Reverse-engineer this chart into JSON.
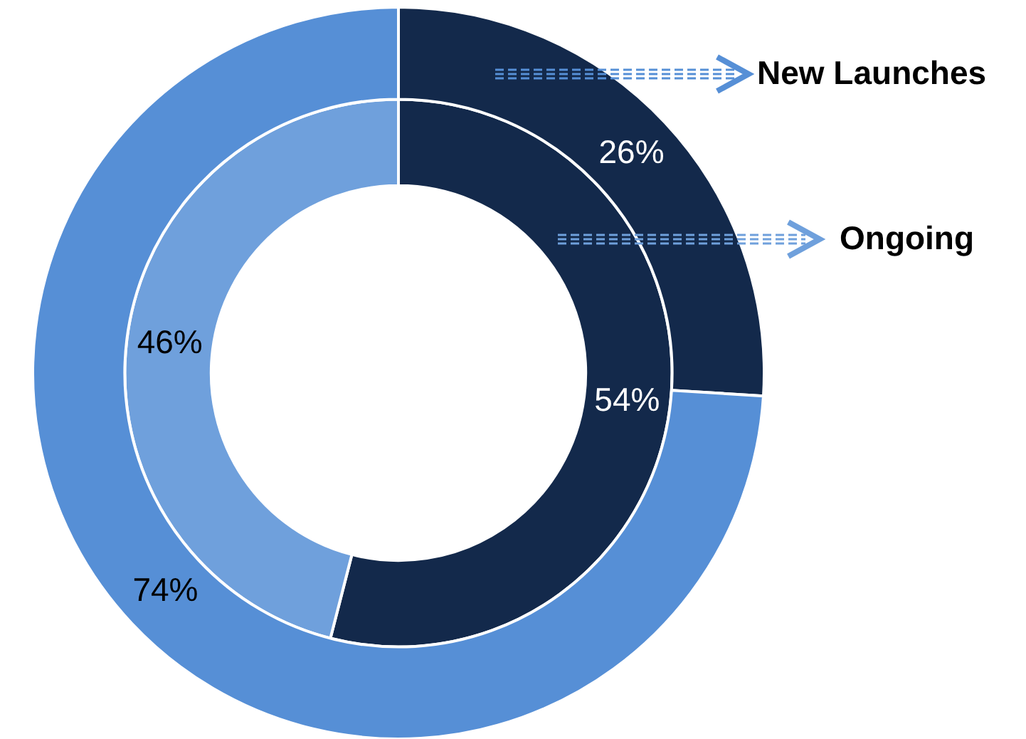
{
  "chart_data": {
    "type": "donut",
    "categories": [
      null,
      null
    ],
    "legend": "top right",
    "series": [
      {
        "name": "New Launches",
        "colors": [
          "#13294b",
          "#568fd6"
        ],
        "values": [
          26,
          74
        ],
        "value_labels": [
          "26%",
          "74%"
        ]
      },
      {
        "name": "Ongoing",
        "colors": [
          "#13294b",
          "#6fa0dc"
        ],
        "values": [
          54,
          46
        ],
        "value_labels": [
          "54%",
          "46%"
        ]
      }
    ]
  }
}
